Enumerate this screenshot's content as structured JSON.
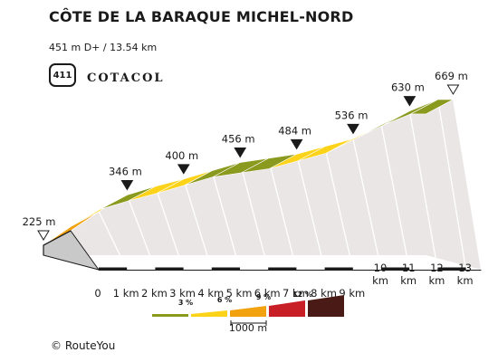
{
  "header": {
    "title": "CÔTE DE LA BARAQUE MICHEL-NORD",
    "stats": "451 m D+ / 13.54 km",
    "badge_number": "411",
    "brand": "COTACOL"
  },
  "footer": {
    "copyright": "© RouteYou"
  },
  "legend": {
    "gradients": [
      "3 %",
      "6 %",
      "9 %",
      "12 %"
    ],
    "colors": [
      "#8a9a1e",
      "#fdd319",
      "#f2a20f",
      "#c81e25",
      "#4a1b16"
    ],
    "scale_label": "1000 m"
  },
  "chart_data": {
    "type": "area",
    "title": "CÔTE DE LA BARAQUE MICHEL-NORD",
    "xlabel": "",
    "ylabel": "",
    "x": [
      0,
      1,
      2,
      3,
      4,
      5,
      6,
      7,
      8,
      9,
      10,
      11,
      12,
      13,
      13.54
    ],
    "elevation": [
      225,
      290,
      346,
      375,
      400,
      428,
      456,
      470,
      484,
      510,
      536,
      583,
      630,
      669,
      669
    ],
    "segment_colors": [
      "#f2a20f",
      "#fdd319",
      "#8a9a1e",
      "#fdd319",
      "#fdd319",
      "#8a9a1e",
      "#8a9a1e",
      "#8a9a1e",
      "#fdd319",
      "#fdd319",
      "#fdd319",
      "#8a9a1e",
      "#8a9a1e"
    ],
    "x_tick_labels": [
      "0",
      "1 km",
      "2 km",
      "3 km",
      "4 km",
      "5 km",
      "6 km",
      "7 km",
      "8 km",
      "9 km",
      "10 km",
      "11 km",
      "12 km",
      "13 km"
    ],
    "elevation_markers": [
      {
        "x": 0,
        "label": "225 m",
        "style": "open"
      },
      {
        "x": 2,
        "label": "346 m",
        "style": "filled"
      },
      {
        "x": 4,
        "label": "400 m",
        "style": "filled"
      },
      {
        "x": 6,
        "label": "456 m",
        "style": "filled"
      },
      {
        "x": 8,
        "label": "484 m",
        "style": "filled"
      },
      {
        "x": 10,
        "label": "536 m",
        "style": "filled"
      },
      {
        "x": 12,
        "label": "630 m",
        "style": "filled"
      },
      {
        "x": 13.54,
        "label": "669 m",
        "style": "open"
      }
    ]
  }
}
